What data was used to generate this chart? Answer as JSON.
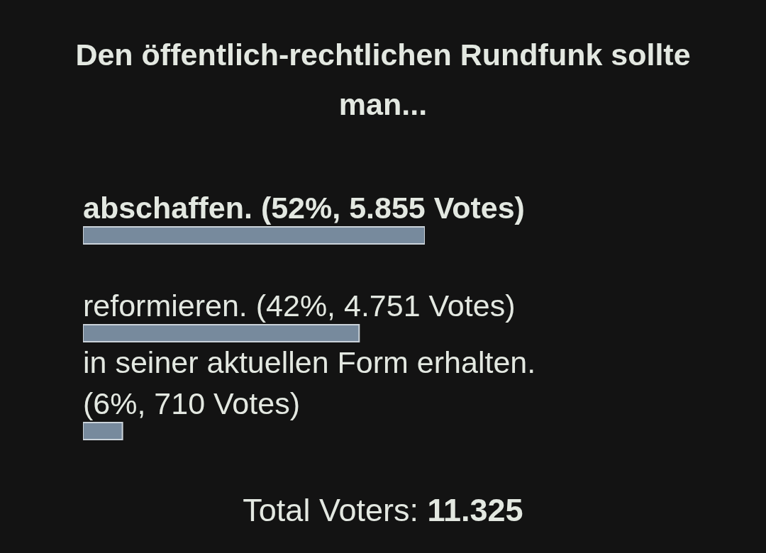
{
  "chart_data": {
    "type": "bar",
    "orientation": "horizontal",
    "title": "Den öffentlich-rechtlichen Rundfunk sollte man...",
    "categories": [
      "abschaffen.",
      "reformieren.",
      "in seiner aktuellen Form erhalten."
    ],
    "values": [
      52,
      42,
      6
    ],
    "value_labels": [
      "(52%, 5.855 Votes)",
      "(42%, 4.751 Votes)",
      "(6%, 710 Votes)"
    ],
    "color": "#778a9d",
    "tick_labels": false,
    "annotations": [
      "Total Voters: 11.325"
    ]
  }
}
